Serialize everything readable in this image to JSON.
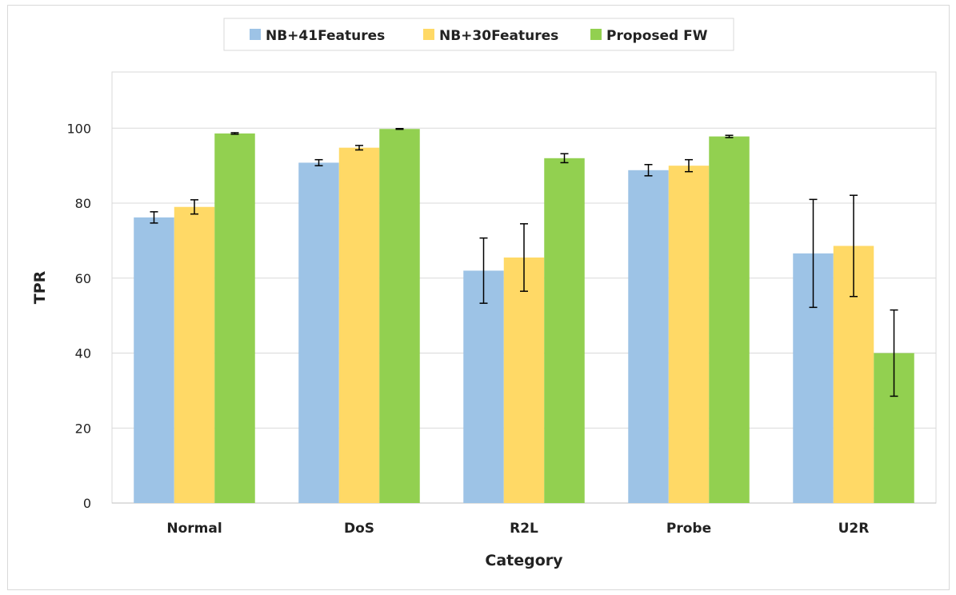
{
  "chart_data": {
    "type": "bar",
    "title": "",
    "xlabel": "Category",
    "ylabel": "TPR",
    "ylim": [
      0,
      100
    ],
    "yticks": [
      0,
      20,
      40,
      60,
      80,
      100
    ],
    "grid": true,
    "legend": "top",
    "categories": [
      "Normal",
      "DoS",
      "R2L",
      "Probe",
      "U2R"
    ],
    "series": [
      {
        "name": "NB+41Features",
        "color": "#9dc3e6",
        "values": [
          76.2,
          90.8,
          62.0,
          88.8,
          66.6
        ],
        "errors": [
          1.5,
          0.8,
          8.7,
          1.5,
          14.4
        ]
      },
      {
        "name": "NB+30Features",
        "color": "#ffd966",
        "values": [
          79.0,
          94.8,
          65.5,
          90.0,
          68.6
        ],
        "errors": [
          1.9,
          0.6,
          9.0,
          1.6,
          13.5
        ]
      },
      {
        "name": "Proposed FW",
        "color": "#92d050",
        "values": [
          98.6,
          99.8,
          92.0,
          97.8,
          40.0
        ],
        "errors": [
          0.2,
          0.1,
          1.2,
          0.3,
          11.5
        ]
      }
    ]
  }
}
